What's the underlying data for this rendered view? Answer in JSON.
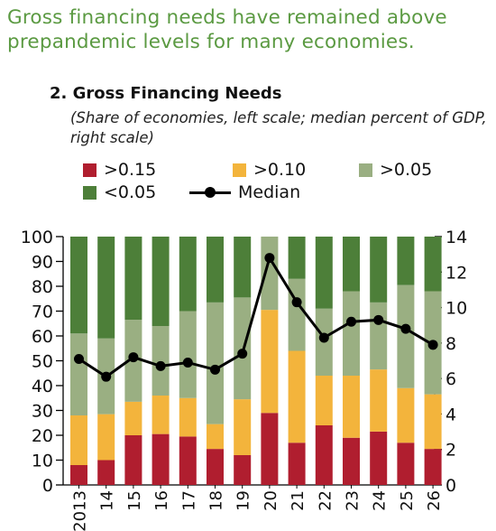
{
  "headline": "Gross financing needs have remained above prepandemic levels for many economies.",
  "chart_data": {
    "type": "bar",
    "stacked": true,
    "title": "2. Gross Financing Needs",
    "subtitle": "(Share of economies, left scale; median percent of GDP, right scale)",
    "categories": [
      "2013",
      "14",
      "15",
      "16",
      "17",
      "18",
      "19",
      "20",
      "21",
      "22",
      "23",
      "24",
      "25",
      "26"
    ],
    "series": [
      {
        "name": ">0.15",
        "color": "#b01e2f",
        "values": [
          8,
          10,
          20,
          20.5,
          19.5,
          14.5,
          12,
          29,
          17,
          24,
          19,
          21.5,
          17,
          14.5
        ]
      },
      {
        "name": ">0.10",
        "color": "#f3b43c",
        "values": [
          20,
          18.5,
          13.5,
          15.5,
          15.5,
          10,
          22.5,
          41.5,
          37,
          20,
          25,
          25,
          22,
          22
        ]
      },
      {
        "name": ">0.05",
        "color": "#9aaf82",
        "values": [
          33,
          30.5,
          33,
          28,
          35,
          49,
          41,
          29.5,
          29,
          27,
          34,
          27,
          41.5,
          41.5
        ]
      },
      {
        "name": "<0.05",
        "color": "#4d7f39",
        "values": [
          39,
          41,
          33.5,
          36,
          30,
          26.5,
          24.5,
          0,
          17,
          29,
          22,
          26.5,
          19.5,
          22
        ]
      }
    ],
    "median": {
      "name": "Median",
      "axis": "right",
      "values": [
        7.1,
        6.1,
        7.2,
        6.7,
        6.9,
        6.5,
        7.4,
        12.8,
        10.3,
        8.3,
        9.2,
        9.3,
        8.8,
        7.9
      ]
    },
    "ylim_left": [
      0,
      100
    ],
    "yticks_left": [
      0,
      10,
      20,
      30,
      40,
      50,
      60,
      70,
      80,
      90,
      100
    ],
    "ylim_right": [
      0,
      14
    ],
    "yticks_right": [
      0,
      2,
      4,
      6,
      8,
      10,
      12,
      14
    ],
    "grid": false,
    "legend_position": "top"
  }
}
